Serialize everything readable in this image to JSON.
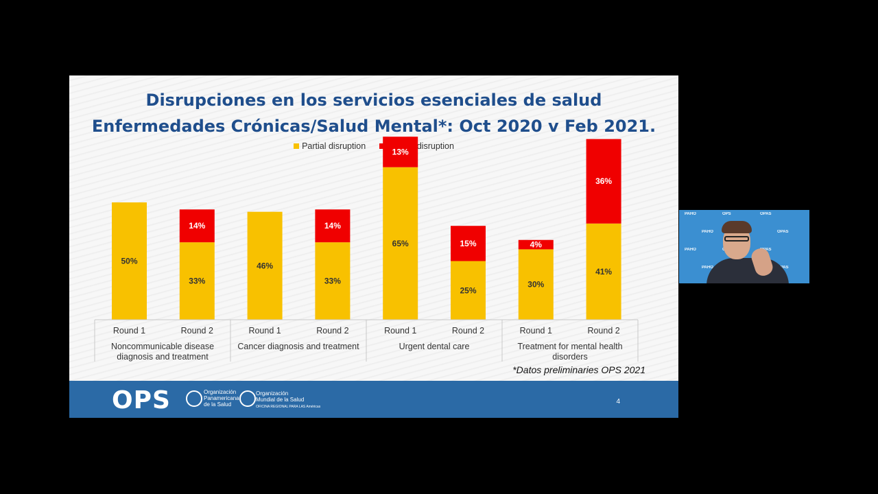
{
  "slide": {
    "title_line1": "Disrupciones en los servicios esenciales de salud",
    "title_line2": "Enfermedades Crónicas/Salud Mental*:  Oct 2020 v Feb 2021.",
    "footnote": "*Datos preliminaries OPS 2021",
    "page_number": "4",
    "footer": {
      "logo_text": "OPS",
      "org1": [
        "Organización",
        "Panamericana",
        "de la Salud"
      ],
      "org2": [
        "Organización",
        "Mundial de la Salud"
      ],
      "org2_sub": "OFICINA REGIONAL PARA LAS Américas"
    }
  },
  "colors": {
    "partial": "#f8c100",
    "severe": "#f00000",
    "title": "#1f4e8c",
    "footer": "#2b6aa6"
  },
  "chart_data": {
    "type": "bar",
    "stacked": true,
    "legend": [
      "Partial disruption",
      "Severe disruption"
    ],
    "legend_position": "top-center",
    "rounds": [
      "Round 1",
      "Round 2",
      "Round 1",
      "Round 2",
      "Round 1",
      "Round 2",
      "Round 1",
      "Round 2"
    ],
    "groups": [
      "Noncommunicable disease diagnosis and treatment",
      "Cancer diagnosis and treatment",
      "Urgent dental care",
      "Treatment for mental health disorders"
    ],
    "group_lines": [
      [
        "Noncommunicable disease",
        "diagnosis and treatment"
      ],
      [
        "Cancer diagnosis and treatment"
      ],
      [
        "Urgent dental care"
      ],
      [
        "Treatment for mental health",
        "disorders"
      ]
    ],
    "series": [
      {
        "name": "Partial disruption",
        "values": [
          50,
          33,
          46,
          33,
          65,
          25,
          30,
          41
        ],
        "labels": [
          "50%",
          "33%",
          "46%",
          "33%",
          "65%",
          "25%",
          "30%",
          "41%"
        ]
      },
      {
        "name": "Severe disruption",
        "values": [
          null,
          14,
          null,
          14,
          13,
          15,
          4,
          36
        ],
        "labels": [
          "",
          "14%",
          "",
          "14%",
          "13%",
          "15%",
          "4%",
          "36%"
        ]
      }
    ]
  },
  "video": {
    "background_text": [
      "PAHO",
      "OPS",
      "OPAS",
      "PAHO",
      "OPS",
      "OPAS",
      "PAHO",
      "OPS",
      "OPAS",
      "PAHO",
      "OPS",
      "OPAS"
    ]
  }
}
